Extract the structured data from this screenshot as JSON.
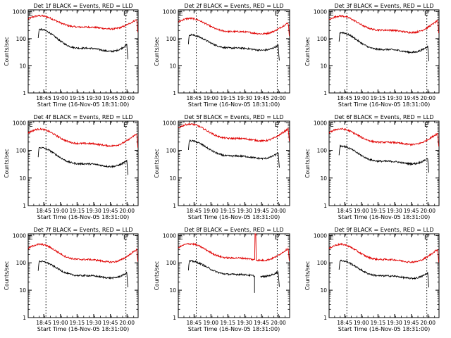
{
  "figure": {
    "colors": {
      "events": "#000000",
      "lld": "#e00000",
      "axis": "#000000"
    }
  },
  "common": {
    "xlabel": "Start Time (16-Nov-05 18:31:00)",
    "ylabel": "Counts/sec",
    "x_ticks": [
      {
        "value": "18:45",
        "label": "18:45"
      },
      {
        "value": "19:00",
        "label": "19:00"
      },
      {
        "value": "19:15",
        "label": "19:15"
      },
      {
        "value": "19:30",
        "label": "19:30"
      },
      {
        "value": "19:45",
        "label": "19:45"
      },
      {
        "value": "20:00",
        "label": "20:00"
      }
    ],
    "y_ticks": [
      {
        "value": 1,
        "label": "1"
      },
      {
        "value": 10,
        "label": "10"
      },
      {
        "value": 100,
        "label": "100"
      },
      {
        "value": 1000,
        "label": "1000"
      }
    ],
    "xlim": [
      "18:31",
      "20:10"
    ],
    "ylim": [
      1,
      1000
    ],
    "yscale": "log",
    "flag_label": "E",
    "flag_times": [
      "18:31",
      "19:56"
    ]
  },
  "chart_data": [
    {
      "type": "line",
      "title": "Det 1f BLACK = Events, RED = LLD",
      "shift": 0,
      "events": {
        "base": 70,
        "amp": 0.4,
        "start": "18:40",
        "end": "20:01"
      },
      "lld": {
        "base": 350,
        "amp": 0.24,
        "start": "18:31",
        "end": "20:10"
      },
      "markers": [
        "18:47",
        "19:59"
      ]
    },
    {
      "type": "line",
      "title": "Det 2f BLACK = Events, RED = LLD",
      "shift": 0,
      "events": {
        "base": 62,
        "amp": 0.28,
        "start": "18:40",
        "end": "20:01"
      },
      "lld": {
        "base": 250,
        "amp": 0.28,
        "start": "18:31",
        "end": "20:10"
      },
      "markers": [
        "18:47",
        "19:59"
      ]
    },
    {
      "type": "line",
      "title": "Det 3f BLACK = Events, RED = LLD",
      "shift": 0,
      "events": {
        "base": 60,
        "amp": 0.36,
        "start": "18:40",
        "end": "20:01"
      },
      "lld": {
        "base": 290,
        "amp": 0.3,
        "start": "18:31",
        "end": "20:10"
      },
      "markers": [
        "18:47",
        "19:59"
      ]
    },
    {
      "type": "line",
      "title": "Det 4f BLACK = Events, RED = LLD",
      "shift": 0,
      "events": {
        "base": 48,
        "amp": 0.34,
        "start": "18:40",
        "end": "20:01"
      },
      "lld": {
        "base": 250,
        "amp": 0.3,
        "start": "18:31",
        "end": "20:10"
      },
      "markers": [
        "18:47",
        "19:59"
      ]
    },
    {
      "type": "line",
      "title": "Det 5f BLACK = Events, RED = LLD",
      "shift": 0,
      "events": {
        "base": 90,
        "amp": 0.32,
        "start": "18:40",
        "end": "20:01"
      },
      "lld": {
        "base": 380,
        "amp": 0.3,
        "start": "18:31",
        "end": "20:10"
      },
      "markers": [
        "18:47",
        "19:59"
      ]
    },
    {
      "type": "line",
      "title": "Det 6f BLACK = Events, RED = LLD",
      "shift": 0,
      "events": {
        "base": 58,
        "amp": 0.32,
        "start": "18:40",
        "end": "20:01"
      },
      "lld": {
        "base": 270,
        "amp": 0.28,
        "start": "18:31",
        "end": "20:10"
      },
      "markers": [
        "18:47",
        "19:59"
      ]
    },
    {
      "type": "line",
      "title": "Det 7f BLACK = Events, RED = LLD",
      "shift": 0,
      "events": {
        "base": 48,
        "amp": 0.3,
        "start": "18:40",
        "end": "20:01"
      },
      "lld": {
        "base": 190,
        "amp": 0.32,
        "start": "18:31",
        "end": "20:10"
      },
      "markers": [
        "18:47",
        "19:59"
      ]
    },
    {
      "type": "line",
      "title": "Det 8f BLACK = Events, RED = LLD",
      "shift": 0,
      "events": {
        "base": 52,
        "amp": 0.28,
        "start": "18:40",
        "end": "20:01",
        "gap": [
          "19:39",
          "19:44"
        ]
      },
      "lld": {
        "base": 210,
        "amp": 0.3,
        "start": "18:31",
        "end": "20:10",
        "spike": [
          "19:39",
          "19:40"
        ]
      },
      "markers": [
        "18:47",
        "19:59"
      ]
    },
    {
      "type": "line",
      "title": "Det 9f BLACK = Events, RED = LLD",
      "shift": 0,
      "events": {
        "base": 48,
        "amp": 0.32,
        "start": "18:40",
        "end": "20:01"
      },
      "lld": {
        "base": 190,
        "amp": 0.32,
        "start": "18:31",
        "end": "20:10"
      },
      "markers": [
        "18:47",
        "19:59"
      ]
    }
  ]
}
